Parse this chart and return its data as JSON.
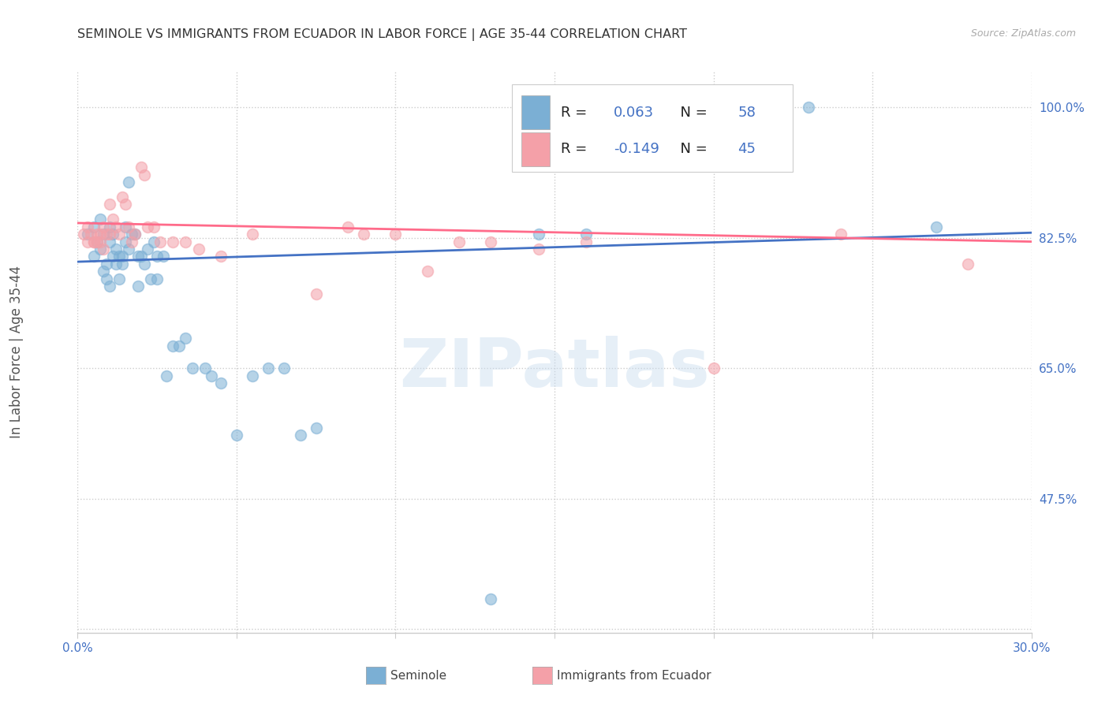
{
  "title": "SEMINOLE VS IMMIGRANTS FROM ECUADOR IN LABOR FORCE | AGE 35-44 CORRELATION CHART",
  "source": "Source: ZipAtlas.com",
  "ylabel": "In Labor Force | Age 35-44",
  "xlim": [
    0.0,
    0.3
  ],
  "ylim": [
    0.295,
    1.05
  ],
  "yticks": [
    0.3,
    0.475,
    0.65,
    0.825,
    1.0
  ],
  "ytick_labels": [
    "",
    "47.5%",
    "65.0%",
    "82.5%",
    "100.0%"
  ],
  "xticks": [
    0.0,
    0.05,
    0.1,
    0.15,
    0.2,
    0.25,
    0.3
  ],
  "xtick_labels": [
    "0.0%",
    "",
    "",
    "",
    "",
    "",
    "30.0%"
  ],
  "color_blue": "#7BAFD4",
  "color_pink": "#F4A0A8",
  "color_blue_line": "#4472C4",
  "color_pink_line": "#FF6B8A",
  "color_blue_text": "#4472C4",
  "color_axis_text": "#4472C4",
  "watermark": "ZIPatlas",
  "legend_line1": "R =   0.063   N = 58",
  "legend_line2": "R = -0.149   N = 45",
  "bottom_label1": "Seminole",
  "bottom_label2": "Immigrants from Ecuador",
  "seminole_x": [
    0.003,
    0.005,
    0.005,
    0.006,
    0.007,
    0.007,
    0.008,
    0.008,
    0.009,
    0.009,
    0.01,
    0.01,
    0.01,
    0.011,
    0.011,
    0.012,
    0.012,
    0.013,
    0.013,
    0.014,
    0.014,
    0.015,
    0.015,
    0.016,
    0.016,
    0.017,
    0.018,
    0.019,
    0.019,
    0.02,
    0.021,
    0.022,
    0.023,
    0.024,
    0.025,
    0.025,
    0.027,
    0.028,
    0.03,
    0.032,
    0.034,
    0.036,
    0.04,
    0.042,
    0.045,
    0.05,
    0.055,
    0.06,
    0.065,
    0.07,
    0.075,
    0.13,
    0.145,
    0.155,
    0.16,
    0.215,
    0.23,
    0.27
  ],
  "seminole_y": [
    0.83,
    0.8,
    0.84,
    0.82,
    0.85,
    0.81,
    0.78,
    0.83,
    0.77,
    0.79,
    0.76,
    0.82,
    0.84,
    0.8,
    0.83,
    0.79,
    0.81,
    0.8,
    0.77,
    0.79,
    0.8,
    0.82,
    0.84,
    0.81,
    0.9,
    0.83,
    0.83,
    0.76,
    0.8,
    0.8,
    0.79,
    0.81,
    0.77,
    0.82,
    0.8,
    0.77,
    0.8,
    0.64,
    0.68,
    0.68,
    0.69,
    0.65,
    0.65,
    0.64,
    0.63,
    0.56,
    0.64,
    0.65,
    0.65,
    0.56,
    0.57,
    0.34,
    0.83,
    1.0,
    0.83,
    0.95,
    1.0,
    0.84
  ],
  "ecuador_x": [
    0.002,
    0.003,
    0.003,
    0.004,
    0.005,
    0.005,
    0.006,
    0.006,
    0.007,
    0.007,
    0.008,
    0.008,
    0.009,
    0.01,
    0.01,
    0.011,
    0.012,
    0.013,
    0.014,
    0.015,
    0.016,
    0.017,
    0.018,
    0.02,
    0.021,
    0.022,
    0.024,
    0.026,
    0.03,
    0.034,
    0.038,
    0.045,
    0.055,
    0.075,
    0.085,
    0.09,
    0.1,
    0.11,
    0.12,
    0.13,
    0.145,
    0.16,
    0.2,
    0.24,
    0.28
  ],
  "ecuador_y": [
    0.83,
    0.84,
    0.82,
    0.83,
    0.82,
    0.82,
    0.82,
    0.83,
    0.83,
    0.82,
    0.84,
    0.81,
    0.83,
    0.83,
    0.87,
    0.85,
    0.84,
    0.83,
    0.88,
    0.87,
    0.84,
    0.82,
    0.83,
    0.92,
    0.91,
    0.84,
    0.84,
    0.82,
    0.82,
    0.82,
    0.81,
    0.8,
    0.83,
    0.75,
    0.84,
    0.83,
    0.83,
    0.78,
    0.82,
    0.82,
    0.81,
    0.82,
    0.65,
    0.83,
    0.79
  ],
  "blue_line_x": [
    0.0,
    0.3
  ],
  "blue_line_y": [
    0.793,
    0.832
  ],
  "pink_line_x": [
    0.0,
    0.3
  ],
  "pink_line_y": [
    0.845,
    0.82
  ]
}
